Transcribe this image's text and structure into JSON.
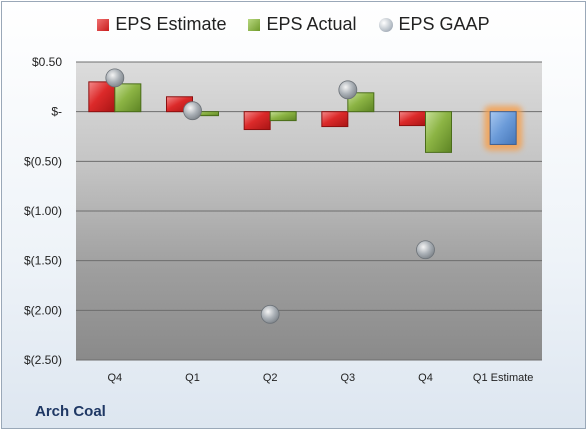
{
  "company": "Arch Coal",
  "colors": {
    "estimate": "#d62020",
    "actual": "#7ea838",
    "gaap": "#b0b8c0",
    "forecast": "#6a9ad8",
    "forecast_glow": "#f5a050"
  },
  "chart_data": {
    "type": "bar",
    "categories": [
      "Q4",
      "Q1",
      "Q2",
      "Q3",
      "Q4",
      "Q1 Estimate"
    ],
    "series": [
      {
        "name": "EPS Estimate",
        "values": [
          0.3,
          0.15,
          -0.18,
          -0.15,
          -0.14,
          -0.33
        ]
      },
      {
        "name": "EPS Actual",
        "values": [
          0.28,
          -0.04,
          -0.09,
          0.19,
          -0.41,
          null
        ]
      },
      {
        "name": "EPS GAAP",
        "values": [
          0.34,
          0.01,
          -2.04,
          0.22,
          -1.39,
          null
        ]
      }
    ],
    "legend": [
      "EPS Estimate",
      "EPS Actual",
      "EPS GAAP"
    ],
    "legend_position": "top",
    "y_ticks": [
      0.5,
      0,
      -0.5,
      -1.0,
      -1.5,
      -2.0,
      -2.5
    ],
    "y_tick_labels": [
      "$0.50",
      "$-",
      "$(0.50)",
      "$(1.00)",
      "$(1.50)",
      "$(2.00)",
      "$(2.50)"
    ],
    "ylim": [
      -2.5,
      0.5
    ],
    "grid": true
  }
}
